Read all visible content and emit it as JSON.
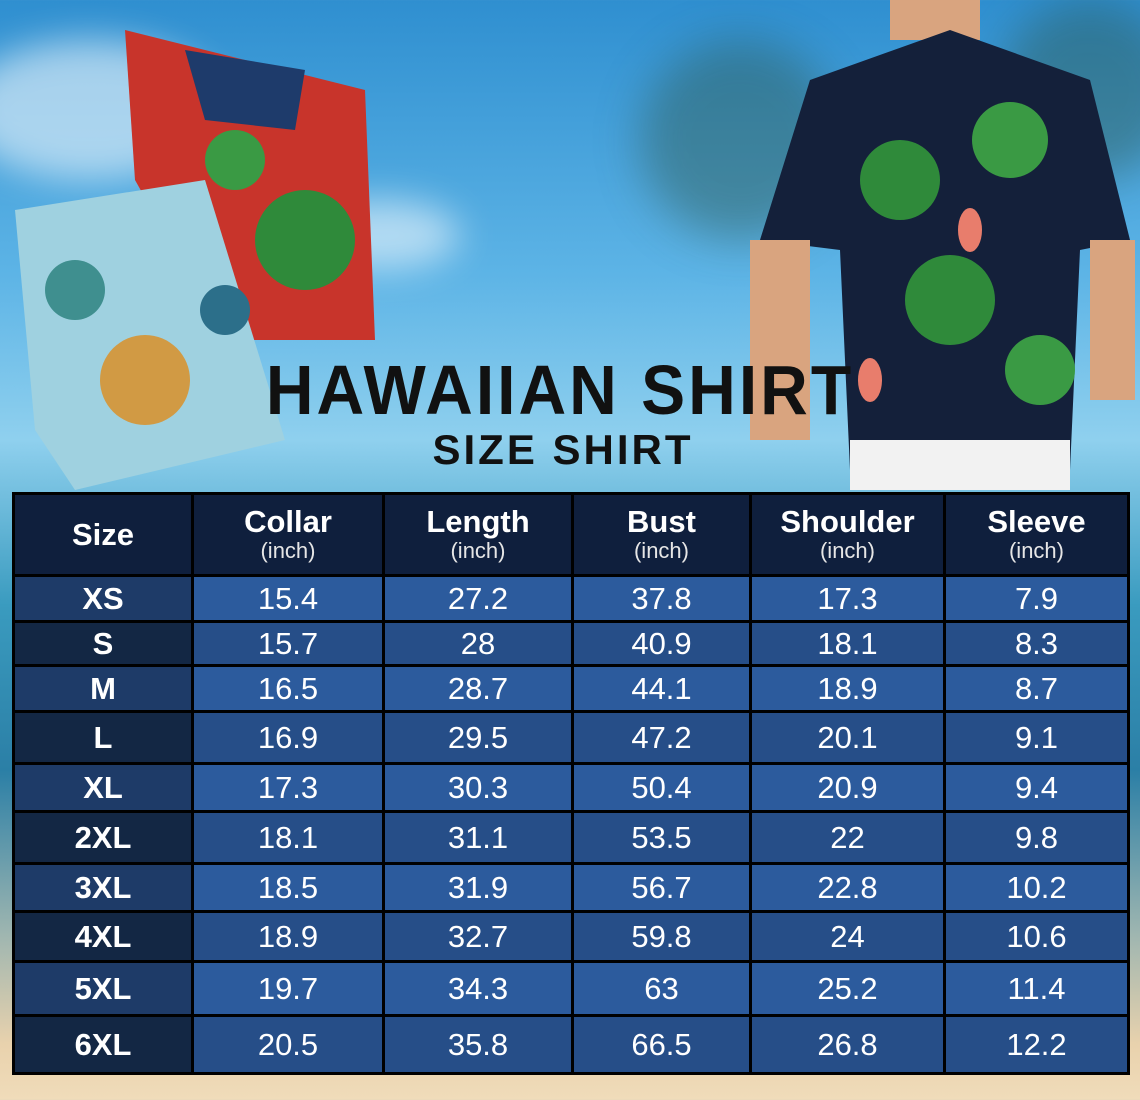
{
  "title": "HAWAIIAN SHIRT",
  "subtitle": "SIZE SHIRT",
  "table": {
    "headers": [
      {
        "label": "Size",
        "unit": ""
      },
      {
        "label": "Collar",
        "unit": "(inch)"
      },
      {
        "label": "Length",
        "unit": "(inch)"
      },
      {
        "label": "Bust",
        "unit": "(inch)"
      },
      {
        "label": "Shoulder",
        "unit": "(inch)"
      },
      {
        "label": "Sleeve",
        "unit": "(inch)"
      }
    ],
    "rows": [
      [
        "XS",
        "15.4",
        "27.2",
        "37.8",
        "17.3",
        "7.9"
      ],
      [
        "S",
        "15.7",
        "28",
        "40.9",
        "18.1",
        "8.3"
      ],
      [
        "M",
        "16.5",
        "28.7",
        "44.1",
        "18.9",
        "8.7"
      ],
      [
        "L",
        "16.9",
        "29.5",
        "47.2",
        "20.1",
        "9.1"
      ],
      [
        "XL",
        "17.3",
        "30.3",
        "50.4",
        "20.9",
        "9.4"
      ],
      [
        "2XL",
        "18.1",
        "31.1",
        "53.5",
        "22",
        "9.8"
      ],
      [
        "3XL",
        "18.5",
        "31.9",
        "56.7",
        "22.8",
        "10.2"
      ],
      [
        "4XL",
        "18.9",
        "32.7",
        "59.8",
        "24",
        "10.6"
      ],
      [
        "5XL",
        "19.7",
        "34.3",
        "63",
        "25.2",
        "11.4"
      ],
      [
        "6XL",
        "20.5",
        "35.8",
        "66.5",
        "26.8",
        "12.2"
      ]
    ]
  },
  "colors": {
    "header": "#0f1f3d",
    "row_light": "#2c5b9d",
    "row_dark": "#264e88",
    "title": "#111111"
  }
}
